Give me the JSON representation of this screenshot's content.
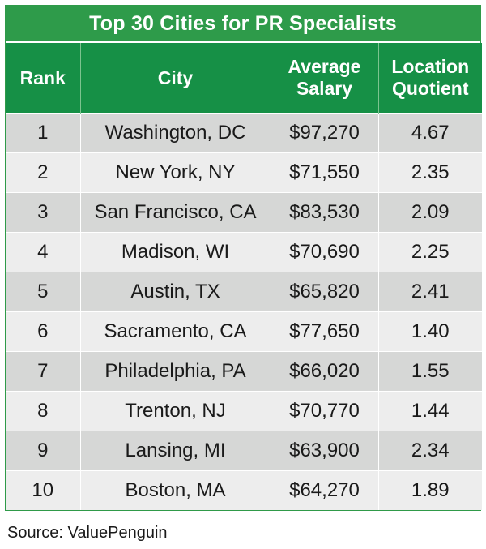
{
  "title": "Top 30 Cities for PR Specialists",
  "headers": {
    "rank": "Rank",
    "city": "City",
    "salary_line1": "Average",
    "salary_line2": "Salary",
    "location_line1": "Location",
    "location_line2": "Quotient"
  },
  "rows": [
    {
      "rank": "1",
      "city": "Washington, DC",
      "salary": "$97,270",
      "quotient": "4.67"
    },
    {
      "rank": "2",
      "city": "New York, NY",
      "salary": "$71,550",
      "quotient": "2.35"
    },
    {
      "rank": "3",
      "city": "San Francisco, CA",
      "salary": "$83,530",
      "quotient": "2.09"
    },
    {
      "rank": "4",
      "city": "Madison, WI",
      "salary": "$70,690",
      "quotient": "2.25"
    },
    {
      "rank": "5",
      "city": "Austin, TX",
      "salary": "$65,820",
      "quotient": "2.41"
    },
    {
      "rank": "6",
      "city": "Sacramento, CA",
      "salary": "$77,650",
      "quotient": "1.40"
    },
    {
      "rank": "7",
      "city": "Philadelphia, PA",
      "salary": "$66,020",
      "quotient": "1.55"
    },
    {
      "rank": "8",
      "city": "Trenton, NJ",
      "salary": "$70,770",
      "quotient": "1.44"
    },
    {
      "rank": "9",
      "city": "Lansing, MI",
      "salary": "$63,900",
      "quotient": "2.34"
    },
    {
      "rank": "10",
      "city": "Boston, MA",
      "salary": "$64,270",
      "quotient": "1.89"
    }
  ],
  "source": "Source: ValuePenguin",
  "colors": {
    "title_bg": "#2e9b4a",
    "header_bg": "#169046",
    "row_dark": "#d6d7d6",
    "row_light": "#ededed"
  }
}
